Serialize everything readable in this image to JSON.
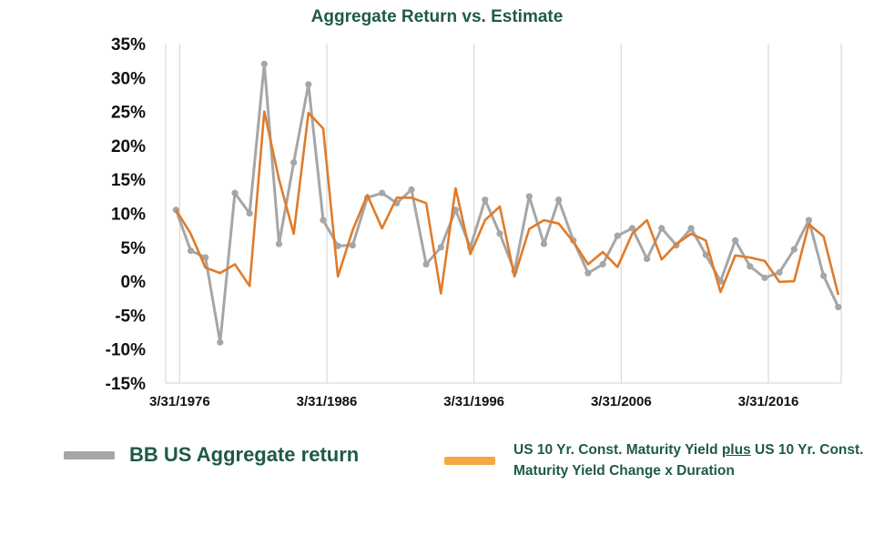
{
  "chart_data": {
    "type": "line",
    "title": "Aggregate Return vs. Estimate",
    "xlabel": "",
    "ylabel": "",
    "x_tick_labels": [
      "3/31/1976",
      "3/31/1986",
      "3/31/1996",
      "3/31/2006",
      "3/31/2016"
    ],
    "y_tick_labels": [
      "35%",
      "30%",
      "25%",
      "20%",
      "15%",
      "10%",
      "5%",
      "0%",
      "-5%",
      "-10%",
      "-15%"
    ],
    "ylim": [
      -15,
      35
    ],
    "xlim": [
      1975.3,
      2021.2
    ],
    "grid": "vertical lines only",
    "legend_position": "bottom",
    "x": [
      1976.0,
      1977.0,
      1978.0,
      1979.0,
      1980.0,
      1981.0,
      1982.0,
      1983.0,
      1984.0,
      1985.0,
      1986.0,
      1987.0,
      1988.0,
      1989.0,
      1990.0,
      1991.0,
      1992.0,
      1993.0,
      1994.0,
      1995.0,
      1996.0,
      1997.0,
      1998.0,
      1999.0,
      2000.0,
      2001.0,
      2002.0,
      2003.0,
      2004.0,
      2005.0,
      2006.0,
      2007.0,
      2008.0,
      2009.0,
      2010.0,
      2011.0,
      2012.0,
      2013.0,
      2014.0,
      2015.0,
      2016.0,
      2017.0,
      2018.0,
      2019.0,
      2020.0,
      2021.0
    ],
    "series": [
      {
        "name": "BB US Aggregate return",
        "color": "#a6a6a6",
        "markers": true,
        "values": [
          10.5,
          4.5,
          3.5,
          -9.0,
          13.0,
          10.0,
          32.0,
          5.5,
          17.5,
          29.0,
          9.0,
          5.2,
          5.3,
          12.3,
          13.0,
          11.5,
          13.5,
          2.5,
          5.0,
          10.5,
          5.0,
          12.0,
          7.0,
          1.5,
          12.5,
          5.5,
          12.0,
          6.0,
          1.2,
          2.5,
          6.7,
          7.8,
          3.3,
          7.8,
          5.3,
          7.8,
          3.9,
          0.0,
          6.0,
          2.2,
          0.5,
          1.3,
          4.7,
          9.0,
          0.8,
          -3.8
        ]
      },
      {
        "name": "US 10 Yr. Const. Maturity Yield plus US 10 Yr. Const. Maturity Yield Change x Duration",
        "color": "#e07b2a",
        "markers": false,
        "values": [
          10.5,
          7.0,
          2.0,
          1.2,
          2.5,
          -0.7,
          25.0,
          15.0,
          7.0,
          24.8,
          22.5,
          0.7,
          7.5,
          12.7,
          7.8,
          12.3,
          12.3,
          11.5,
          -1.8,
          13.7,
          4.0,
          9.0,
          11.0,
          0.7,
          7.7,
          9.0,
          8.5,
          5.8,
          2.5,
          4.3,
          2.1,
          7.0,
          9.0,
          3.2,
          5.5,
          7.0,
          6.0,
          -1.6,
          3.8,
          3.5,
          3.0,
          -0.1,
          0.0,
          8.4,
          6.6,
          -2.0
        ]
      }
    ]
  },
  "legend": {
    "item_a": "BB US Aggregate return",
    "item_b_part1": "US 10 Yr. Const. Maturity Yield ",
    "item_b_underlined": "plus",
    "item_b_part2": " US 10 Yr. Const. Maturity Yield Change x Duration"
  },
  "colors": {
    "title_text": "#1f5a45",
    "legend_text": "#1f5a45",
    "axis_labels": "#111111",
    "grid": "#d9d9d9",
    "aggregate_line": "#a6a6a6",
    "estimate_line": "#e07b2a",
    "estimate_swatch": "#f5a742"
  }
}
